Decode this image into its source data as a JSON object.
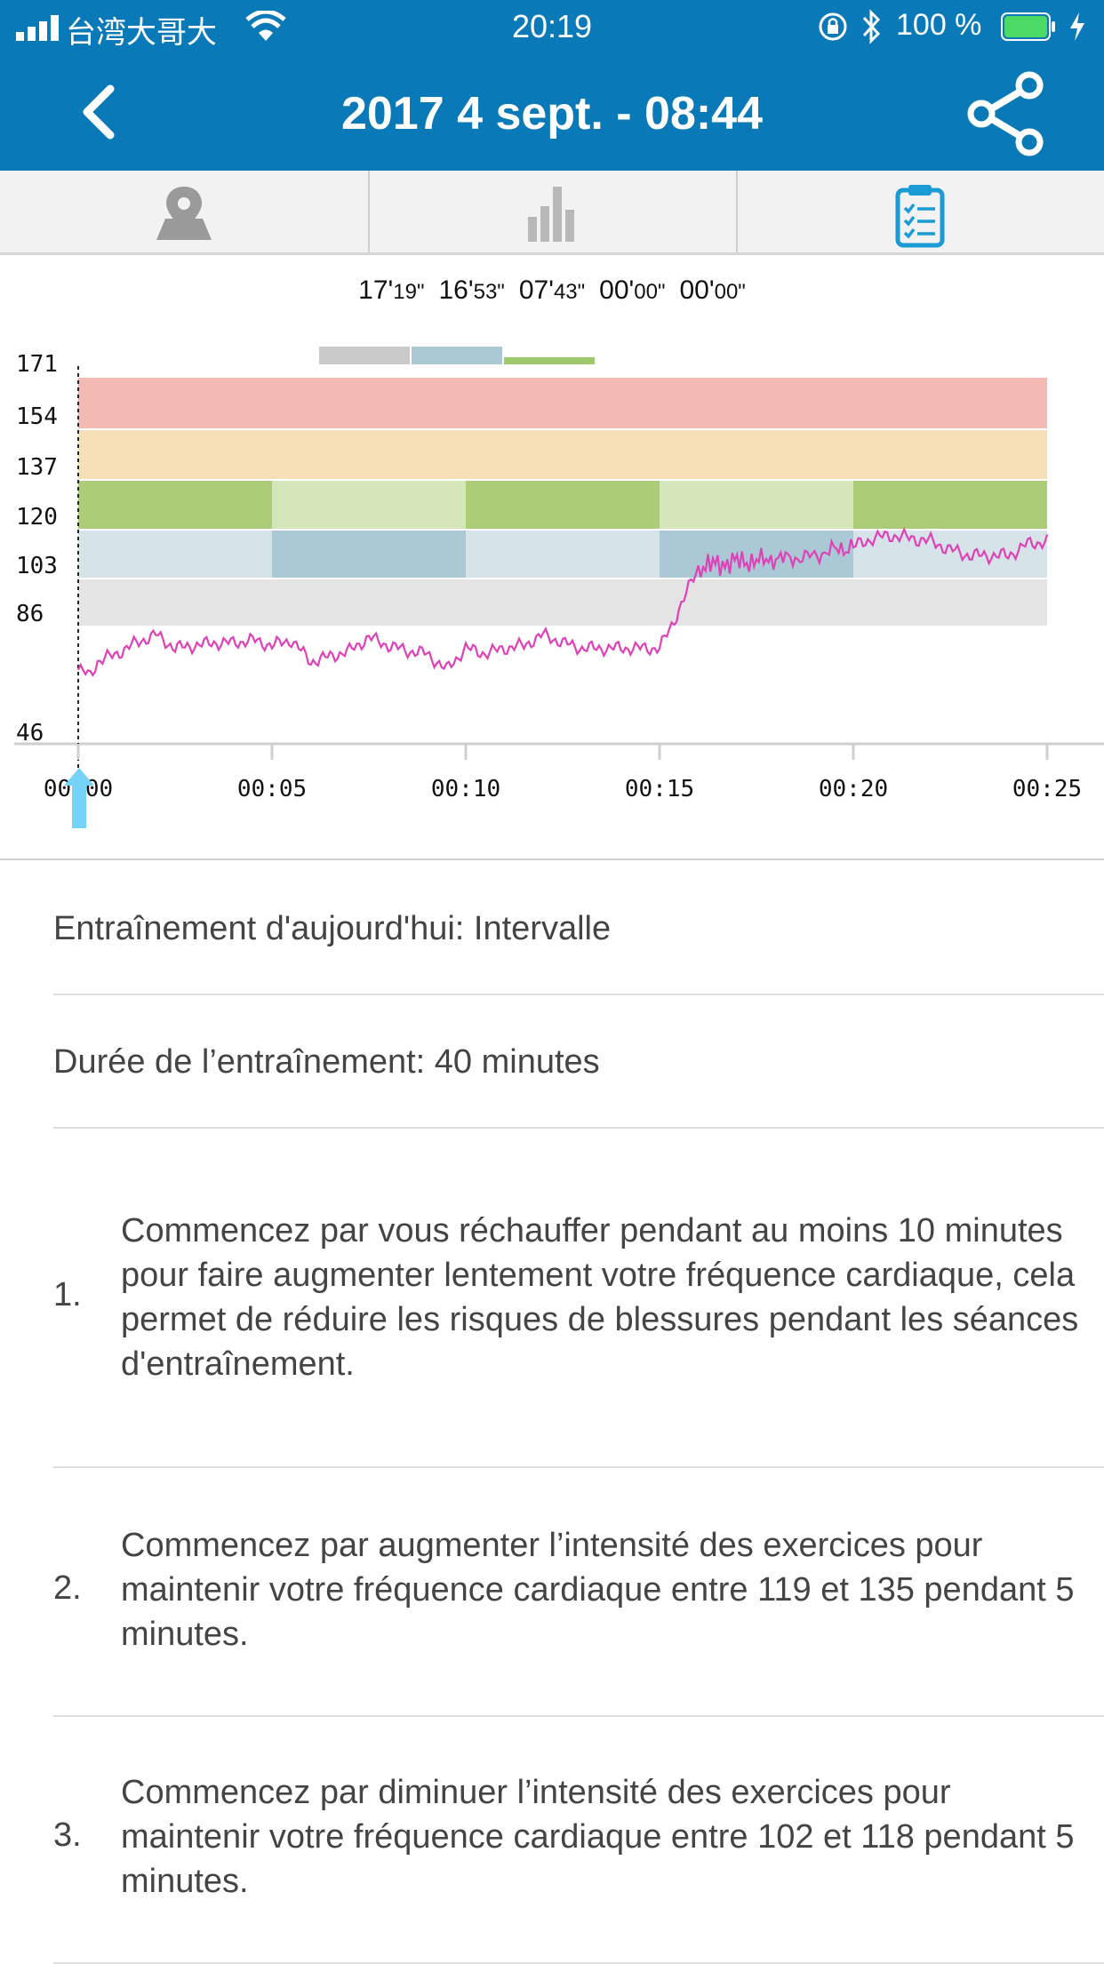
{
  "status": {
    "carrier": "台湾大哥大",
    "time": "20:19",
    "battery": "100 %"
  },
  "header": {
    "title": "2017 4 sept. - 08:44"
  },
  "tabs": [
    {
      "icon": "map-pin-icon",
      "active": false
    },
    {
      "icon": "bar-chart-icon",
      "active": false
    },
    {
      "icon": "clipboard-checklist-icon",
      "active": true
    }
  ],
  "zone_times": [
    {
      "main": "17'",
      "sub": "19\""
    },
    {
      "main": "16'",
      "sub": "53\""
    },
    {
      "main": "07'",
      "sub": "43\""
    },
    {
      "main": "00'",
      "sub": "00\""
    },
    {
      "main": "00'",
      "sub": "00\""
    }
  ],
  "chart_data": {
    "type": "line",
    "y_ticks": [
      "171",
      "154",
      "137",
      "120",
      "103",
      "86",
      "46"
    ],
    "x_ticks": [
      "00:00",
      "00:05",
      "00:10",
      "00:15",
      "00:20",
      "00:25"
    ],
    "ylim": [
      46,
      171
    ],
    "xlim": [
      0,
      25
    ],
    "zones": [
      {
        "from": 154,
        "to": 171,
        "color": "#f3b9b3"
      },
      {
        "from": 137,
        "to": 154,
        "color": "#f7e0b7"
      },
      {
        "from": 120,
        "to": 137,
        "color": "#d5e6bb"
      },
      {
        "from": 103,
        "to": 120,
        "color": "#d6e4ea"
      },
      {
        "from": 86,
        "to": 103,
        "color": "#e4e4e4"
      }
    ],
    "targets": [
      {
        "from_min": 0,
        "to_min": 5,
        "zone_from": 120,
        "zone_to": 137,
        "color": "#adcc78"
      },
      {
        "from_min": 5,
        "to_min": 10,
        "zone_from": 103,
        "zone_to": 120,
        "color": "#abc9d5"
      },
      {
        "from_min": 10,
        "to_min": 15,
        "zone_from": 120,
        "zone_to": 137,
        "color": "#adcc78"
      },
      {
        "from_min": 15,
        "to_min": 20,
        "zone_from": 103,
        "zone_to": 120,
        "color": "#abc9d5"
      },
      {
        "from_min": 20,
        "to_min": 25,
        "zone_from": 120,
        "zone_to": 137,
        "color": "#adcc78"
      }
    ],
    "legend_colors": [
      "#cacaca",
      "#abc9d5",
      "#9ec96c"
    ],
    "series": [
      {
        "color": "#e040b8",
        "x": [
          0,
          0.3,
          0.5,
          1,
          1.5,
          2,
          2.2,
          2.5,
          3,
          3.5,
          4,
          4.5,
          5,
          5.5,
          6,
          6.5,
          7,
          7.5,
          8,
          8.5,
          9,
          9.5,
          10,
          10.5,
          11,
          11.5,
          12,
          12.5,
          13,
          13.5,
          14,
          14.5,
          15,
          15.3,
          15.6,
          16,
          16.5,
          17,
          17.5,
          18,
          18.5,
          19,
          19.5,
          20,
          20.5,
          21,
          21.5,
          22,
          22.5,
          23,
          23.5,
          24,
          24.5,
          25
        ],
        "y": [
          70,
          68,
          73,
          76,
          80,
          83,
          81,
          78,
          79,
          80,
          80,
          81,
          79,
          81,
          73,
          75,
          77,
          82,
          79,
          77,
          76,
          70,
          78,
          76,
          78,
          79,
          83,
          80,
          78,
          78,
          78,
          78,
          78,
          86,
          95,
          107,
          108,
          109,
          109,
          110,
          110,
          111,
          113,
          114,
          117,
          118,
          117,
          116,
          113,
          111,
          111,
          111,
          115,
          116
        ]
      }
    ]
  },
  "workout": {
    "type_label": "Entraînement d'aujourd'hui: Intervalle",
    "duration_label": "Durée de l’entraînement: 40 minutes"
  },
  "steps": [
    {
      "num": "1.",
      "text": "Commencez par vous réchauffer pendant au moins 10 minutes pour faire augmenter lentement votre fréquence cardiaque, cela permet de réduire les risques de blessures pendant les séances d'entraînement."
    },
    {
      "num": "2.",
      "text": "Commencez par augmenter l’intensité des exercices pour maintenir votre fréquence cardiaque entre 119 et 135 pendant 5 minutes."
    },
    {
      "num": "3.",
      "text": "Commencez par diminuer l’intensité des exercices pour maintenir votre fréquence cardiaque entre 102 et 118 pendant 5 minutes."
    }
  ]
}
